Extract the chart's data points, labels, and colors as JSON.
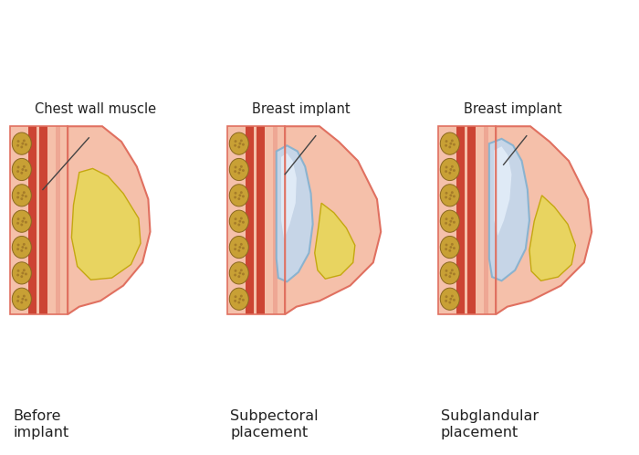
{
  "bg_color": "#ffffff",
  "skin_color": "#f5c0aa",
  "skin_dark": "#e07060",
  "muscle_red": "#cc4433",
  "muscle_pink": "#e89080",
  "rib_tan": "#c8a035",
  "rib_dark": "#8a6820",
  "breast_yellow": "#e8d460",
  "breast_yellow_edge": "#c4a810",
  "implant_blue": "#c0d8f0",
  "implant_edge": "#80b0d0",
  "implant_white": "#eef6ff",
  "anno_color": "#444444",
  "text_color": "#222222",
  "label_fontsize": 10.5,
  "caption_fontsize": 11.5,
  "label1_top": "Chest wall muscle",
  "label2_top": "Breast implant",
  "label3_top": "Breast implant",
  "panel1_label": "Before\nimplant",
  "panel2_label": "Subpectoral\nplacement",
  "panel3_label": "Subglandular\nplacement"
}
